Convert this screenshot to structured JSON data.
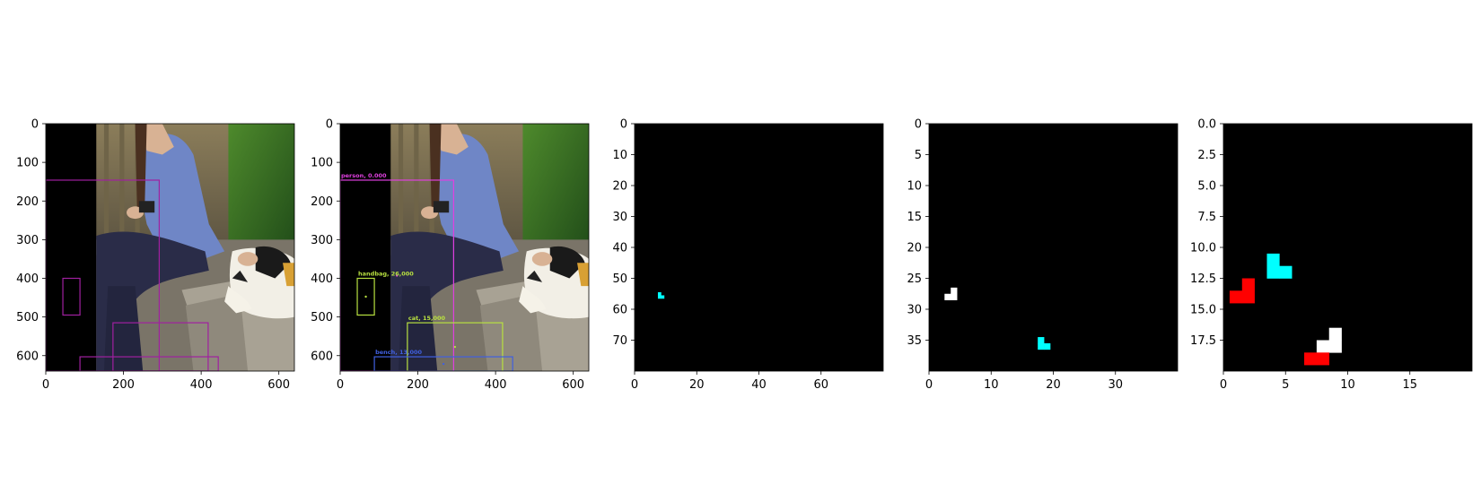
{
  "chart_data": [
    {
      "type": "image",
      "xlim": [
        0,
        640
      ],
      "ylim": [
        640,
        0
      ],
      "xticks": [
        0,
        200,
        400,
        600
      ],
      "yticks": [
        0,
        100,
        200,
        300,
        400,
        500,
        600
      ],
      "background": "photo: woman sitting on a stone bench petting a calico cat, left strip black",
      "boxes": [
        {
          "category": "person",
          "xmin": 0,
          "ymin": 146,
          "xmax": 292,
          "ymax": 640,
          "color": "#a020a0"
        },
        {
          "category": "handbag",
          "xmin": 44,
          "ymin": 400,
          "xmax": 88,
          "ymax": 495,
          "color": "#a020a0"
        },
        {
          "category": "cat",
          "xmin": 173,
          "ymin": 515,
          "xmax": 418,
          "ymax": 640,
          "color": "#a020a0"
        },
        {
          "category": "bench",
          "xmin": 88,
          "ymin": 603,
          "xmax": 444,
          "ymax": 640,
          "color": "#a020a0"
        }
      ]
    },
    {
      "type": "image",
      "xlim": [
        0,
        640
      ],
      "ylim": [
        640,
        0
      ],
      "xticks": [
        0,
        200,
        400,
        600
      ],
      "yticks": [
        0,
        100,
        200,
        300,
        400,
        500,
        600
      ],
      "background": "same photo",
      "boxes": [
        {
          "label": "person, 0.000",
          "xmin": 0,
          "ymin": 146,
          "xmax": 292,
          "ymax": 640,
          "color": "#e040e0"
        },
        {
          "label": "handbag, 26,000",
          "xmin": 44,
          "ymin": 400,
          "xmax": 88,
          "ymax": 495,
          "color": "#b8e040"
        },
        {
          "label": "cat, 15,000",
          "xmin": 173,
          "ymin": 515,
          "xmax": 418,
          "ymax": 640,
          "color": "#b8e040"
        },
        {
          "label": "bench, 13,000",
          "xmin": 88,
          "ymin": 603,
          "xmax": 444,
          "ymax": 640,
          "color": "#4060e0"
        }
      ]
    },
    {
      "type": "heatmap",
      "grid_size": 80,
      "xlim": [
        0,
        80
      ],
      "ylim": [
        80,
        0
      ],
      "xticks": [
        0,
        20,
        40,
        60
      ],
      "yticks": [
        0,
        10,
        20,
        30,
        40,
        50,
        60,
        70
      ],
      "cells": [
        {
          "x": 8,
          "y": 55,
          "color": "#00ffff"
        },
        {
          "x": 8,
          "y": 56,
          "color": "#00ffff"
        },
        {
          "x": 9,
          "y": 56,
          "color": "#00ffff"
        }
      ]
    },
    {
      "type": "heatmap",
      "grid_size": 40,
      "xlim": [
        0,
        40
      ],
      "ylim": [
        40,
        0
      ],
      "xticks": [
        0,
        10,
        20,
        30
      ],
      "yticks": [
        0,
        5,
        10,
        15,
        20,
        25,
        30,
        35
      ],
      "cells": [
        {
          "x": 4,
          "y": 27,
          "color": "#ffffff"
        },
        {
          "x": 3,
          "y": 28,
          "color": "#ffffff"
        },
        {
          "x": 4,
          "y": 28,
          "color": "#ffffff"
        },
        {
          "x": 18,
          "y": 35,
          "color": "#00ffff"
        },
        {
          "x": 18,
          "y": 36,
          "color": "#00ffff"
        },
        {
          "x": 19,
          "y": 36,
          "color": "#00ffff"
        }
      ]
    },
    {
      "type": "heatmap",
      "grid_size": 20,
      "xlim": [
        0,
        20
      ],
      "ylim": [
        20,
        0
      ],
      "xticks": [
        0,
        5,
        10,
        15
      ],
      "yticks": [
        0.0,
        2.5,
        5.0,
        7.5,
        10.0,
        12.5,
        15.0,
        17.5
      ],
      "ytick_labels": [
        "0.0",
        "2.5",
        "5.0",
        "7.5",
        "10.0",
        "12.5",
        "15.0",
        "17.5"
      ],
      "cells": [
        {
          "x": 4,
          "y": 11,
          "color": "#00ffff"
        },
        {
          "x": 4,
          "y": 12,
          "color": "#00ffff"
        },
        {
          "x": 5,
          "y": 12,
          "color": "#00ffff"
        },
        {
          "x": 2,
          "y": 13,
          "color": "#ff0000"
        },
        {
          "x": 1,
          "y": 14,
          "color": "#ff0000"
        },
        {
          "x": 2,
          "y": 14,
          "color": "#ff0000"
        },
        {
          "x": 9,
          "y": 17,
          "color": "#ffffff"
        },
        {
          "x": 8,
          "y": 18,
          "color": "#ffffff"
        },
        {
          "x": 9,
          "y": 18,
          "color": "#ffffff"
        },
        {
          "x": 7,
          "y": 19,
          "color": "#ff0000"
        },
        {
          "x": 8,
          "y": 19,
          "color": "#ff0000"
        }
      ]
    }
  ]
}
